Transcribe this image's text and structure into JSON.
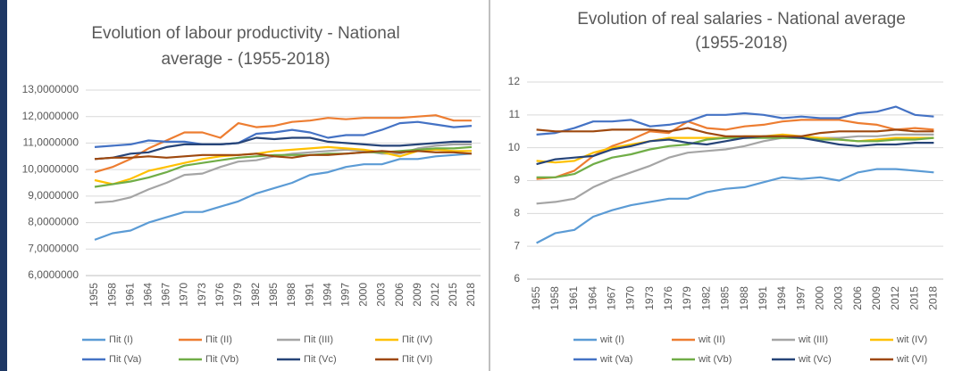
{
  "chart_data": [
    {
      "type": "line",
      "title": [
        "Evolution of labour productivity - National",
        "average - (1955-2018)"
      ],
      "categories": [
        "1955",
        "1958",
        "1961",
        "1964",
        "1967",
        "1970",
        "1973",
        "1976",
        "1979",
        "1982",
        "1985",
        "1988",
        "1991",
        "1994",
        "1997",
        "2000",
        "2003",
        "2006",
        "2009",
        "2012",
        "2015",
        "2018"
      ],
      "ylim": [
        6,
        13
      ],
      "yticks": [
        {
          "value": 6,
          "label": "6,0000000"
        },
        {
          "value": 7,
          "label": "7,0000000"
        },
        {
          "value": 8,
          "label": "8,0000000"
        },
        {
          "value": 9,
          "label": "9,0000000"
        },
        {
          "value": 10,
          "label": "10,0000000"
        },
        {
          "value": 11,
          "label": "11,0000000"
        },
        {
          "value": 12,
          "label": "12,0000000"
        },
        {
          "value": 13,
          "label": "13,0000000"
        }
      ],
      "grid": true,
      "series": [
        {
          "name": "Πit (I)",
          "color": "#5b9bd5",
          "values": [
            7.35,
            7.6,
            7.7,
            8.0,
            8.2,
            8.4,
            8.4,
            8.6,
            8.8,
            9.1,
            9.3,
            9.5,
            9.8,
            9.9,
            10.1,
            10.2,
            10.2,
            10.4,
            10.4,
            10.5,
            10.55,
            10.6
          ]
        },
        {
          "name": "Πit (II)",
          "color": "#ed7d31",
          "values": [
            9.9,
            10.1,
            10.4,
            10.8,
            11.1,
            11.4,
            11.4,
            11.2,
            11.75,
            11.6,
            11.65,
            11.8,
            11.85,
            11.95,
            11.9,
            11.95,
            11.95,
            11.95,
            12.0,
            12.05,
            11.85,
            11.85
          ]
        },
        {
          "name": "Πit (III)",
          "color": "#a5a5a5",
          "values": [
            8.75,
            8.8,
            8.95,
            9.25,
            9.5,
            9.8,
            9.85,
            10.1,
            10.3,
            10.35,
            10.5,
            10.6,
            10.65,
            10.7,
            10.75,
            10.7,
            10.6,
            10.6,
            10.8,
            10.9,
            10.95,
            10.95
          ]
        },
        {
          "name": "Πit (IV)",
          "color": "#ffc000",
          "values": [
            9.6,
            9.45,
            9.65,
            9.95,
            10.1,
            10.25,
            10.4,
            10.5,
            10.55,
            10.6,
            10.7,
            10.75,
            10.8,
            10.85,
            10.8,
            10.75,
            10.65,
            10.5,
            10.7,
            10.75,
            10.7,
            10.7
          ]
        },
        {
          "name": "Πit (Va)",
          "color": "#4472c4",
          "values": [
            10.85,
            10.9,
            10.95,
            11.1,
            11.05,
            11.05,
            10.95,
            10.95,
            11.0,
            11.35,
            11.4,
            11.5,
            11.4,
            11.2,
            11.3,
            11.3,
            11.5,
            11.75,
            11.8,
            11.7,
            11.6,
            11.65
          ]
        },
        {
          "name": "Πit (Vb)",
          "color": "#70ad47",
          "values": [
            9.35,
            9.45,
            9.55,
            9.7,
            9.9,
            10.15,
            10.25,
            10.35,
            10.45,
            10.5,
            10.55,
            10.55,
            10.55,
            10.6,
            10.6,
            10.65,
            10.65,
            10.7,
            10.75,
            10.8,
            10.8,
            10.85
          ]
        },
        {
          "name": "Πit (Vc)",
          "color": "#264478",
          "values": [
            10.4,
            10.45,
            10.6,
            10.65,
            10.85,
            10.95,
            10.95,
            10.95,
            11.0,
            11.2,
            11.15,
            11.2,
            11.2,
            11.05,
            11.0,
            10.95,
            10.9,
            10.9,
            10.95,
            11.0,
            11.05,
            11.05
          ]
        },
        {
          "name": "Πit (VI)",
          "color": "#9e480e",
          "values": [
            10.4,
            10.45,
            10.45,
            10.5,
            10.45,
            10.5,
            10.55,
            10.55,
            10.55,
            10.6,
            10.5,
            10.45,
            10.55,
            10.55,
            10.6,
            10.65,
            10.7,
            10.65,
            10.7,
            10.65,
            10.65,
            10.6
          ]
        }
      ]
    },
    {
      "type": "line",
      "title": [
        "Evolution of real salaries - National average",
        "(1955-2018)"
      ],
      "categories": [
        "1955",
        "1958",
        "1961",
        "1964",
        "1967",
        "1970",
        "1973",
        "1976",
        "1979",
        "1982",
        "1985",
        "1988",
        "1991",
        "1994",
        "1997",
        "2000",
        "2003",
        "2006",
        "2009",
        "2012",
        "2015",
        "2018"
      ],
      "ylim": [
        6,
        12
      ],
      "yticks": [
        6,
        7,
        8,
        9,
        10,
        11,
        12
      ],
      "grid": true,
      "series": [
        {
          "name": "wit (I)",
          "color": "#5b9bd5",
          "values": [
            7.1,
            7.4,
            7.5,
            7.9,
            8.1,
            8.25,
            8.35,
            8.45,
            8.45,
            8.65,
            8.75,
            8.8,
            8.95,
            9.1,
            9.05,
            9.1,
            9.0,
            9.25,
            9.35,
            9.35,
            9.3,
            9.25
          ]
        },
        {
          "name": "wit (II)",
          "color": "#ed7d31",
          "values": [
            9.05,
            9.1,
            9.3,
            9.75,
            10.05,
            10.25,
            10.5,
            10.45,
            10.8,
            10.6,
            10.55,
            10.65,
            10.7,
            10.8,
            10.85,
            10.85,
            10.85,
            10.75,
            10.7,
            10.55,
            10.6,
            10.55
          ]
        },
        {
          "name": "wit (III)",
          "color": "#a5a5a5",
          "values": [
            8.3,
            8.35,
            8.45,
            8.8,
            9.05,
            9.25,
            9.45,
            9.7,
            9.85,
            9.9,
            9.95,
            10.05,
            10.2,
            10.3,
            10.3,
            10.3,
            10.3,
            10.35,
            10.35,
            10.4,
            10.4,
            10.4
          ]
        },
        {
          "name": "wit (IV)",
          "color": "#ffc000",
          "values": [
            9.6,
            9.55,
            9.6,
            9.85,
            10.0,
            10.1,
            10.2,
            10.3,
            10.3,
            10.3,
            10.3,
            10.35,
            10.35,
            10.4,
            10.35,
            10.3,
            10.25,
            10.2,
            10.25,
            10.3,
            10.3,
            10.3
          ]
        },
        {
          "name": "wit (Va)",
          "color": "#4472c4",
          "values": [
            10.4,
            10.45,
            10.6,
            10.8,
            10.8,
            10.85,
            10.65,
            10.7,
            10.8,
            11.0,
            11.0,
            11.05,
            11.0,
            10.9,
            10.95,
            10.9,
            10.9,
            11.05,
            11.1,
            11.25,
            11.0,
            10.95
          ]
        },
        {
          "name": "wit (Vb)",
          "color": "#70ad47",
          "values": [
            9.1,
            9.1,
            9.2,
            9.5,
            9.7,
            9.8,
            9.95,
            10.05,
            10.1,
            10.25,
            10.3,
            10.3,
            10.3,
            10.3,
            10.3,
            10.25,
            10.25,
            10.2,
            10.2,
            10.25,
            10.25,
            10.3
          ]
        },
        {
          "name": "wit (Vc)",
          "color": "#264478",
          "values": [
            9.5,
            9.65,
            9.7,
            9.75,
            9.95,
            10.05,
            10.2,
            10.25,
            10.15,
            10.1,
            10.2,
            10.3,
            10.35,
            10.35,
            10.3,
            10.2,
            10.1,
            10.05,
            10.1,
            10.1,
            10.15,
            10.15
          ]
        },
        {
          "name": "wit (VI)",
          "color": "#9e480e",
          "values": [
            10.55,
            10.5,
            10.5,
            10.5,
            10.55,
            10.55,
            10.55,
            10.5,
            10.6,
            10.45,
            10.35,
            10.35,
            10.35,
            10.35,
            10.35,
            10.45,
            10.5,
            10.5,
            10.5,
            10.55,
            10.5,
            10.5
          ]
        }
      ]
    }
  ]
}
